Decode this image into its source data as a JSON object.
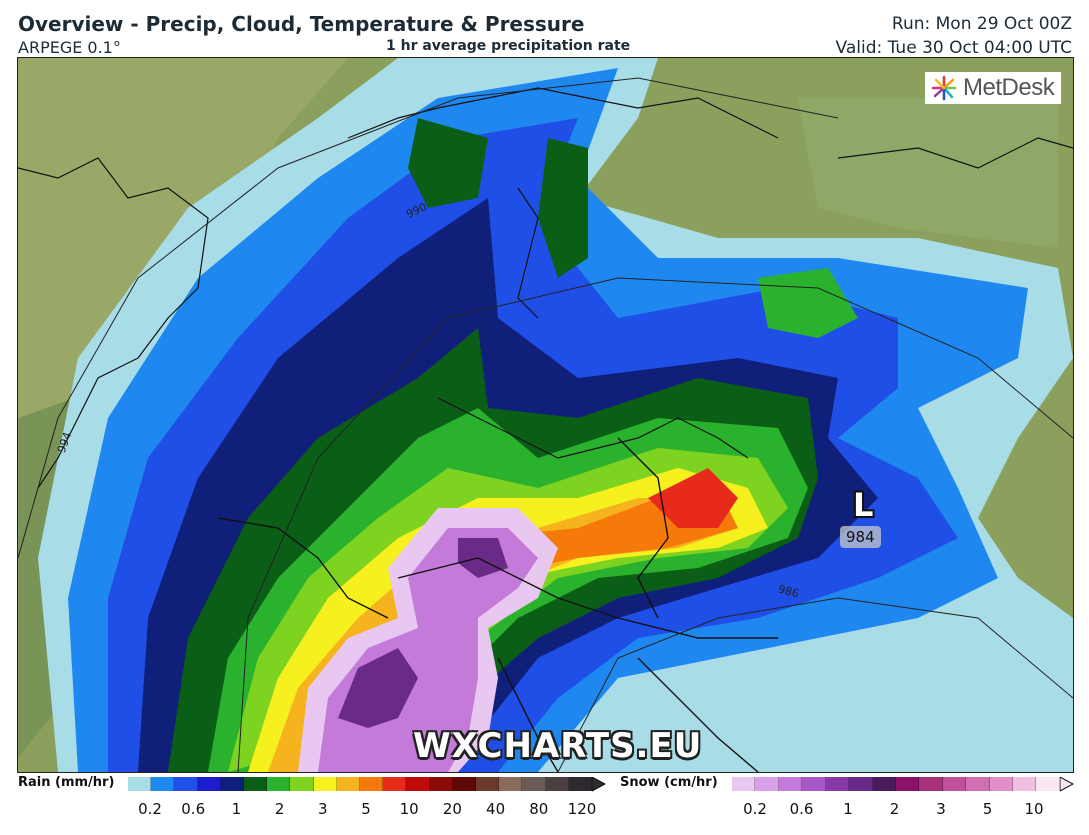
{
  "header": {
    "title": "Overview - Precip, Cloud, Temperature & Pressure",
    "model": "ARPEGE 0.1°",
    "subtitle": "1 hr average precipitation rate",
    "run": "Run: Mon 29 Oct 00Z",
    "valid": "Valid: Tue 30 Oct 04:00 UTC"
  },
  "logo": {
    "text": "MetDesk"
  },
  "watermark": "WXCHARTS.EU",
  "pressure_system": {
    "letter": "L",
    "value": "984"
  },
  "contour_labels": [
    "990",
    "994",
    "986"
  ],
  "legend": {
    "rain": {
      "label": "Rain (mm/hr)",
      "colors": [
        "#a8dde8",
        "#1e88f0",
        "#1f4fe6",
        "#1c1ccd",
        "#10207a",
        "#0b5e16",
        "#2ab22e",
        "#7ed321",
        "#f5f01e",
        "#f5b41e",
        "#f57a0a",
        "#e82a1a",
        "#c00a0a",
        "#8c0a0a",
        "#5c0a05",
        "#6b3a2a",
        "#8a6a5a",
        "#6a5a58",
        "#4a3e40",
        "#2e2a30"
      ],
      "ticks": [
        "0.2",
        "0.6",
        "1",
        "2",
        "3",
        "5",
        "10",
        "20",
        "40",
        "80",
        "120"
      ]
    },
    "snow": {
      "label": "Snow (cm/hr)",
      "colors": [
        "#e8c8f0",
        "#d8a0e8",
        "#c47ad8",
        "#a856c8",
        "#8a3aa8",
        "#6a2a88",
        "#4a1a5a",
        "#8a106a",
        "#a8307a",
        "#c0509a",
        "#d070b0",
        "#e090c8",
        "#f0c0e0",
        "#f8e8f4"
      ],
      "ticks": [
        "0.2",
        "0.6",
        "1",
        "2",
        "3",
        "5",
        "10"
      ]
    },
    "colors": {
      "land": "#8aa05c",
      "sea_light": "#a8dde8"
    }
  }
}
